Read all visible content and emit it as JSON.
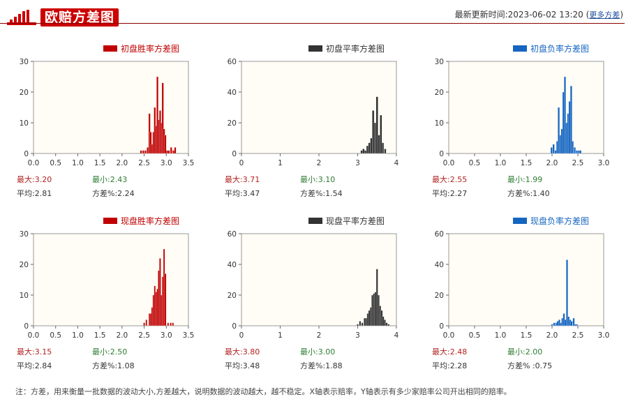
{
  "header": {
    "title": "欧赔方差图",
    "update_label": "最新更新时间:2023-06-02 13:20",
    "more_link": "更多方差",
    "paren_open": "(",
    "paren_close": ")"
  },
  "footer_note": "注：方差，用来衡量一批数据的波动大小,方差越大，说明数据的波动越大，越不稳定。X轴表示赔率，Y轴表示有多少家赔率公司开出相同的赔率。",
  "colors": {
    "win": "#c00000",
    "draw": "#333333",
    "lose": "#1565c0",
    "plot_bg": "#fffdf5",
    "accent": "#c00000"
  },
  "chart_data": [
    {
      "type": "bar",
      "title": "初盘胜率方差图",
      "color": "#c00000",
      "xlim": [
        0,
        3.5
      ],
      "xticks": [
        "0.0",
        "0.5",
        "1.0",
        "1.5",
        "2.0",
        "2.5",
        "3.0",
        "3.5"
      ],
      "xtick_values": [
        0,
        0.5,
        1.0,
        1.5,
        2.0,
        2.5,
        3.0,
        3.5
      ],
      "ylim": [
        0,
        30
      ],
      "yticks": [
        "0",
        "10",
        "20",
        "30"
      ],
      "ytick_values": [
        0,
        10,
        20,
        30
      ],
      "bar_width": 0.04,
      "x": [
        2.43,
        2.48,
        2.53,
        2.58,
        2.62,
        2.65,
        2.68,
        2.71,
        2.74,
        2.77,
        2.8,
        2.83,
        2.86,
        2.89,
        2.92,
        2.95,
        2.98,
        3.02,
        3.06,
        3.11,
        3.16,
        3.2
      ],
      "values": [
        1,
        1,
        1,
        2,
        13,
        7,
        3,
        7,
        15,
        9,
        25,
        11,
        14,
        10,
        23,
        8,
        6,
        1,
        1,
        2,
        1,
        2
      ],
      "stats": {
        "max": "最大:3.20",
        "min": "最小:2.43",
        "avg": "平均:2.81",
        "var": "方差%:2.24"
      }
    },
    {
      "type": "bar",
      "title": "初盘平率方差图",
      "color": "#333333",
      "xlim": [
        0,
        4
      ],
      "xticks": [
        "0",
        "1",
        "2",
        "3",
        "4"
      ],
      "xtick_values": [
        0,
        1,
        2,
        3,
        4
      ],
      "ylim": [
        0,
        60
      ],
      "yticks": [
        "0",
        "20",
        "40",
        "60"
      ],
      "ytick_values": [
        0,
        20,
        40,
        60
      ],
      "bar_width": 0.05,
      "x": [
        3.1,
        3.15,
        3.2,
        3.25,
        3.3,
        3.35,
        3.4,
        3.45,
        3.5,
        3.55,
        3.6,
        3.65,
        3.71
      ],
      "values": [
        2,
        3,
        2,
        5,
        7,
        10,
        28,
        20,
        37,
        12,
        25,
        7,
        3
      ],
      "stats": {
        "max": "最大:3.71",
        "min": "最小:3.10",
        "avg": "平均:3.47",
        "var": "方差%:1.54"
      }
    },
    {
      "type": "bar",
      "title": "初盘负率方差图",
      "color": "#1565c0",
      "xlim": [
        0,
        3.0
      ],
      "xticks": [
        "0.0",
        "0.5",
        "1.0",
        "1.5",
        "2.0",
        "2.5",
        "3.0"
      ],
      "xtick_values": [
        0,
        0.5,
        1.0,
        1.5,
        2.0,
        2.5,
        3.0
      ],
      "ylim": [
        0,
        30
      ],
      "yticks": [
        "0",
        "10",
        "20",
        "30"
      ],
      "ytick_values": [
        0,
        10,
        20,
        30
      ],
      "bar_width": 0.035,
      "x": [
        1.99,
        2.03,
        2.07,
        2.1,
        2.13,
        2.16,
        2.19,
        2.22,
        2.25,
        2.28,
        2.31,
        2.34,
        2.37,
        2.4,
        2.44,
        2.48,
        2.52,
        2.55
      ],
      "values": [
        2,
        3,
        1,
        4,
        15,
        6,
        8,
        20,
        25,
        10,
        13,
        17,
        22,
        4,
        2,
        1,
        1,
        1
      ],
      "stats": {
        "max": "最大:2.55",
        "min": "最小:1.99",
        "avg": "平均:2.27",
        "var": "方差%:1.40"
      }
    },
    {
      "type": "bar",
      "title": "现盘胜率方差图",
      "color": "#c00000",
      "xlim": [
        0,
        3.5
      ],
      "xticks": [
        "0.0",
        "0.5",
        "1.0",
        "1.5",
        "2.0",
        "2.5",
        "3.0",
        "3.5"
      ],
      "xtick_values": [
        0,
        0.5,
        1.0,
        1.5,
        2.0,
        2.5,
        3.0,
        3.5
      ],
      "ylim": [
        0,
        30
      ],
      "yticks": [
        "0",
        "10",
        "20",
        "30"
      ],
      "ytick_values": [
        0,
        10,
        20,
        30
      ],
      "bar_width": 0.035,
      "x": [
        2.5,
        2.55,
        2.62,
        2.65,
        2.68,
        2.71,
        2.74,
        2.77,
        2.8,
        2.83,
        2.86,
        2.89,
        2.92,
        2.95,
        2.98,
        3.04,
        3.1,
        3.15
      ],
      "values": [
        1,
        2,
        4,
        4,
        6,
        10,
        13,
        11,
        12,
        18,
        22,
        10,
        16,
        25,
        17,
        1,
        1,
        1
      ],
      "stats": {
        "max": "最大:3.15",
        "min": "最小:2.50",
        "avg": "平均:2.84",
        "var": "方差%:1.08"
      }
    },
    {
      "type": "bar",
      "title": "现盘平率方差图",
      "color": "#333333",
      "xlim": [
        0,
        4
      ],
      "xticks": [
        "0",
        "1",
        "2",
        "3",
        "4"
      ],
      "xtick_values": [
        0,
        1,
        2,
        3,
        4
      ],
      "ylim": [
        0,
        60
      ],
      "yticks": [
        "0",
        "20",
        "40",
        "60"
      ],
      "ytick_values": [
        0,
        20,
        40,
        60
      ],
      "bar_width": 0.045,
      "x": [
        3.0,
        3.06,
        3.12,
        3.18,
        3.22,
        3.26,
        3.3,
        3.34,
        3.38,
        3.42,
        3.46,
        3.5,
        3.54,
        3.58,
        3.62,
        3.66,
        3.7,
        3.75,
        3.8
      ],
      "values": [
        1,
        3,
        2,
        5,
        5,
        8,
        10,
        12,
        20,
        21,
        22,
        37,
        20,
        13,
        10,
        6,
        4,
        2,
        1
      ],
      "stats": {
        "max": "最大:3.80",
        "min": "最小:3.00",
        "avg": "平均:3.48",
        "var": "方差%:1.88"
      }
    },
    {
      "type": "bar",
      "title": "现盘负率方差图",
      "color": "#1565c0",
      "xlim": [
        0,
        3.0
      ],
      "xticks": [
        "0.0",
        "0.5",
        "1.0",
        "1.5",
        "2.0",
        "2.5",
        "3.0"
      ],
      "xtick_values": [
        0,
        0.5,
        1.0,
        1.5,
        2.0,
        2.5,
        3.0
      ],
      "ylim": [
        0,
        60
      ],
      "yticks": [
        "0",
        "20",
        "40",
        "60"
      ],
      "ytick_values": [
        0,
        20,
        40,
        60
      ],
      "bar_width": 0.035,
      "x": [
        2.0,
        2.04,
        2.08,
        2.11,
        2.14,
        2.17,
        2.2,
        2.23,
        2.26,
        2.29,
        2.32,
        2.35,
        2.38,
        2.42,
        2.45,
        2.48
      ],
      "values": [
        1,
        2,
        2,
        3,
        4,
        2,
        5,
        8,
        4,
        43,
        6,
        4,
        3,
        5,
        1,
        1
      ],
      "stats": {
        "max": "最大:2.48",
        "min": "最小:2.00",
        "avg": "平均:2.28",
        "var": "方差% :0.75"
      }
    }
  ]
}
